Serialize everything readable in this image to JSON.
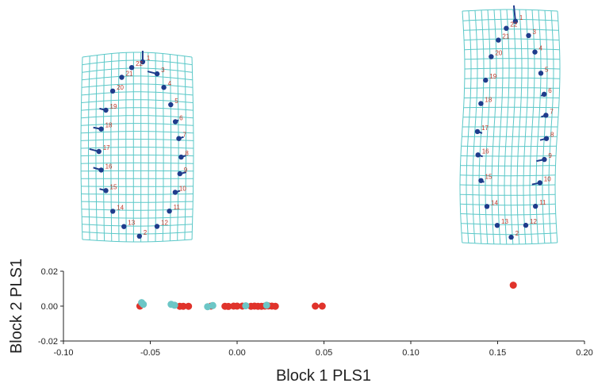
{
  "colors": {
    "grid": "#5bc8c8",
    "landmark": "#1f3c8c",
    "vector": "#1f3c8c",
    "landmark_label": "#c0392b",
    "series_a": "#e0332b",
    "series_b": "#6cc6c6",
    "axis": "#222222"
  },
  "deformation_panels": [
    {
      "landmark_labels": [
        "1",
        "2",
        "3",
        "4",
        "5",
        "6",
        "7",
        "8",
        "9",
        "10",
        "11",
        "12",
        "13",
        "14",
        "15",
        "16",
        "17",
        "18",
        "19",
        "20",
        "21",
        "22"
      ]
    },
    {
      "landmark_labels": [
        "1",
        "2",
        "3",
        "4",
        "5",
        "6",
        "7",
        "8",
        "9",
        "10",
        "11",
        "12",
        "13",
        "14",
        "15",
        "16",
        "17",
        "18",
        "19",
        "20",
        "21",
        "22"
      ]
    }
  ],
  "chart_data": {
    "type": "scatter",
    "xlabel": "Block 1 PLS1",
    "ylabel": "Block 2 PLS1",
    "xlim": [
      -0.1,
      0.2
    ],
    "ylim": [
      -0.02,
      0.02
    ],
    "x_tick_labels": [
      "-0.10",
      "-0.05",
      "0.00",
      "0.05",
      "0.10",
      "0.15",
      "0.20"
    ],
    "y_tick_labels": [
      "0.02",
      "0.00",
      "-0.02"
    ],
    "grid": false,
    "series": [
      {
        "color": "#e0332b",
        "points": [
          [
            -0.056,
            0.0
          ],
          [
            -0.033,
            -0.0001
          ],
          [
            -0.031,
            -0.0001
          ],
          [
            -0.028,
            -0.0001
          ],
          [
            -0.015,
            0.0
          ],
          [
            -0.007,
            -0.0001
          ],
          [
            -0.005,
            -0.0002
          ],
          [
            -0.002,
            0.0
          ],
          [
            0.0,
            0.0
          ],
          [
            0.003,
            0.0
          ],
          [
            0.008,
            -0.0001
          ],
          [
            0.01,
            0.0
          ],
          [
            0.012,
            -0.0001
          ],
          [
            0.014,
            -0.0001
          ],
          [
            0.016,
            0.0
          ],
          [
            0.018,
            0.0001
          ],
          [
            0.02,
            0.0
          ],
          [
            0.022,
            -0.0001
          ],
          [
            0.045,
            0.0
          ],
          [
            0.049,
            0.0
          ],
          [
            0.159,
            0.012
          ]
        ]
      },
      {
        "color": "#6cc6c6",
        "points": [
          [
            -0.055,
            0.002
          ],
          [
            -0.054,
            0.001
          ],
          [
            -0.038,
            0.001
          ],
          [
            -0.036,
            0.0005
          ],
          [
            -0.017,
            -0.0003
          ],
          [
            -0.014,
            0.0003
          ],
          [
            0.005,
            0.0002
          ],
          [
            0.017,
            0.0005
          ]
        ]
      }
    ]
  }
}
